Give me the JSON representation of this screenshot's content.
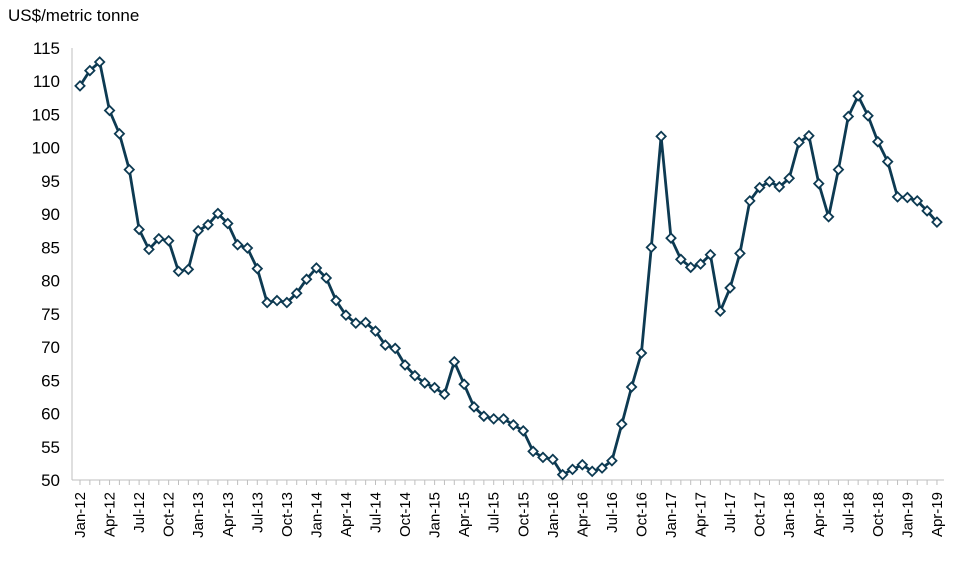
{
  "chart_data": {
    "type": "line",
    "ylabel": "US$/metric tonne",
    "ylim": [
      50,
      115
    ],
    "yticks": [
      50,
      55,
      60,
      65,
      70,
      75,
      80,
      85,
      90,
      95,
      100,
      105,
      110,
      115
    ],
    "xtick_labels": [
      "Jan-12",
      "Apr-12",
      "Jul-12",
      "Oct-12",
      "Jan-13",
      "Apr-13",
      "Jul-13",
      "Oct-13",
      "Jan-14",
      "Apr-14",
      "Jul-14",
      "Oct-14",
      "Jan-15",
      "Apr-15",
      "Jul-15",
      "Oct-15",
      "Jan-16",
      "Apr-16",
      "Jul-16",
      "Oct-16",
      "Jan-17",
      "Apr-17",
      "Jul-17",
      "Oct-17",
      "Jan-18",
      "Apr-18",
      "Jul-18",
      "Oct-18",
      "Jan-19",
      "Apr-19"
    ],
    "grid": false,
    "legend": "none",
    "line_color": "#0d3a52",
    "series": [
      {
        "x": [
          "Jan-12",
          "Feb-12",
          "Mar-12",
          "Apr-12",
          "May-12",
          "Jun-12",
          "Jul-12",
          "Aug-12",
          "Sep-12",
          "Oct-12",
          "Nov-12",
          "Dec-12",
          "Jan-13",
          "Feb-13",
          "Mar-13",
          "Apr-13",
          "May-13",
          "Jun-13",
          "Jul-13",
          "Aug-13",
          "Sep-13",
          "Oct-13",
          "Nov-13",
          "Dec-13",
          "Jan-14",
          "Feb-14",
          "Mar-14",
          "Apr-14",
          "May-14",
          "Jun-14",
          "Jul-14",
          "Aug-14",
          "Sep-14",
          "Oct-14",
          "Nov-14",
          "Dec-14",
          "Jan-15",
          "Feb-15",
          "Mar-15",
          "Apr-15",
          "May-15",
          "Jun-15",
          "Jul-15",
          "Aug-15",
          "Sep-15",
          "Oct-15",
          "Nov-15",
          "Dec-15",
          "Jan-16",
          "Feb-16",
          "Mar-16",
          "Apr-16",
          "May-16",
          "Jun-16",
          "Jul-16",
          "Aug-16",
          "Sep-16",
          "Oct-16",
          "Nov-16",
          "Dec-16",
          "Jan-17",
          "Feb-17",
          "Mar-17",
          "Apr-17",
          "May-17",
          "Jun-17",
          "Jul-17",
          "Aug-17",
          "Sep-17",
          "Oct-17",
          "Nov-17",
          "Dec-17",
          "Jan-18",
          "Feb-18",
          "Mar-18",
          "Apr-18",
          "May-18",
          "Jun-18",
          "Jul-18",
          "Aug-18",
          "Sep-18",
          "Oct-18",
          "Nov-18",
          "Dec-18",
          "Jan-19",
          "Feb-19",
          "Mar-19",
          "Apr-19"
        ],
        "values": [
          109.3,
          111.6,
          112.9,
          105.6,
          102.1,
          96.7,
          87.7,
          84.7,
          86.3,
          86.0,
          81.4,
          81.7,
          87.5,
          88.4,
          90.1,
          88.6,
          85.4,
          84.9,
          81.8,
          76.7,
          77.0,
          76.7,
          78.1,
          80.2,
          81.9,
          80.4,
          77.0,
          74.8,
          73.6,
          73.7,
          72.4,
          70.3,
          69.8,
          67.3,
          65.7,
          64.6,
          63.9,
          62.9,
          67.8,
          64.4,
          61.0,
          59.6,
          59.2,
          59.2,
          58.3,
          57.4,
          54.3,
          53.4,
          53.1,
          50.8,
          51.6,
          52.3,
          51.3,
          51.8,
          52.9,
          58.4,
          64.0,
          69.1,
          85.0,
          101.7,
          86.4,
          83.2,
          82.0,
          82.5,
          83.9,
          75.4,
          78.9,
          84.1,
          92.0,
          94.0,
          94.9,
          94.1,
          95.4,
          100.8,
          101.8,
          94.6,
          89.6,
          96.7,
          104.7,
          107.8,
          104.8,
          100.9,
          97.9,
          92.6,
          92.5,
          92.0,
          90.5,
          88.8
        ]
      }
    ]
  }
}
